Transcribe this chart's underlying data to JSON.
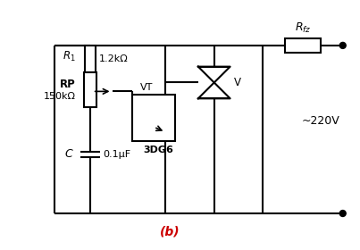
{
  "title": "(b)",
  "background_color": "#ffffff",
  "line_color": "#000000",
  "fig_width": 4.03,
  "fig_height": 2.8,
  "dpi": 100,
  "labels": {
    "R1": "$R_1$",
    "R1_val": "1.2kΩ",
    "RP": "RP",
    "RP_val": "150kΩ",
    "C": "$C$",
    "C_val": "0.1μF",
    "VT": "VT",
    "VT_val": "3DG6",
    "V": "V",
    "Rfz": "$R_{fz}$",
    "AC": "~220V"
  }
}
